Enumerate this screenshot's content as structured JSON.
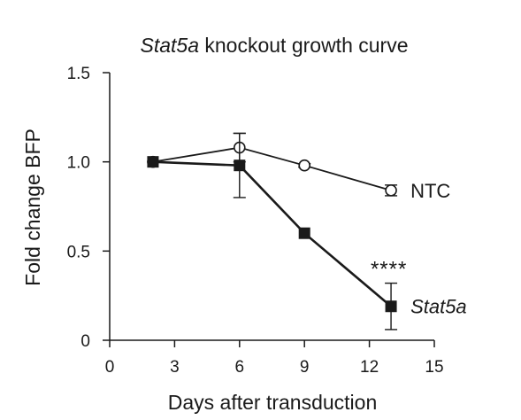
{
  "chart_data": {
    "type": "line",
    "title_italic": "Stat5a",
    "title_rest": " knockout growth curve",
    "xlabel": "Days after transduction",
    "ylabel": "Fold change BFP",
    "xlim": [
      0,
      15
    ],
    "ylim": [
      0,
      1.5
    ],
    "x_ticks": [
      0,
      3,
      6,
      9,
      12,
      15
    ],
    "y_ticks": [
      0,
      0.5,
      1.0,
      1.5
    ],
    "x_tick_labels": [
      "0",
      "3",
      "6",
      "9",
      "12",
      "15"
    ],
    "y_tick_labels": [
      "0",
      "0.5",
      "1.0",
      "1.5"
    ],
    "grid": false,
    "legend": "none",
    "series": [
      {
        "name": "NTC",
        "name_italic": false,
        "marker": "open-circle",
        "x": [
          2,
          6,
          9,
          13
        ],
        "y": [
          1.0,
          1.08,
          0.98,
          0.84
        ],
        "err": [
          0,
          0.08,
          0.01,
          0.03
        ]
      },
      {
        "name": "Stat5a",
        "name_italic": true,
        "marker": "filled-square",
        "x": [
          2,
          6,
          9,
          13
        ],
        "y": [
          1.0,
          0.98,
          0.6,
          0.19
        ],
        "err": [
          0,
          0.18,
          0,
          0.13
        ]
      }
    ],
    "annotations": [
      {
        "text": "****",
        "x": 12.9,
        "y": 0.36
      }
    ],
    "colors": {
      "line": "#1a1a1a",
      "marker_fill": "#1a1a1a",
      "open_marker_fill": "#ffffff"
    }
  }
}
